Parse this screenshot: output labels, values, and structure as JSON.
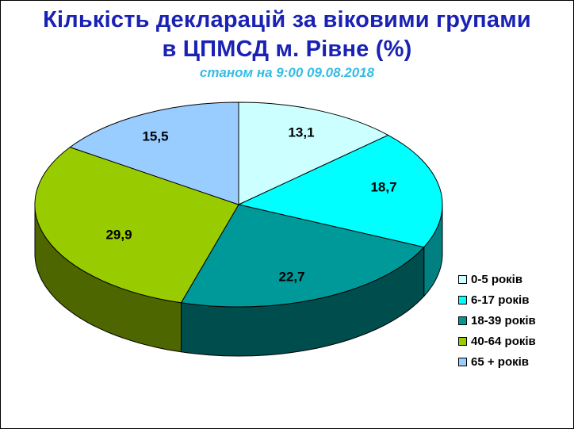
{
  "chart_data": {
    "type": "pie",
    "title": "Кількість декларацій за віковими групами",
    "title_line2": "в ЦПМСД м. Рівне (%)",
    "subtitle": "станом на 9:00 09.08.2018",
    "three_d": true,
    "legend_position": "right",
    "slices": [
      {
        "label": "0-5 років",
        "value": 13.1,
        "value_label": "13,1",
        "color": "#ccffff",
        "side_color": "#9fdede"
      },
      {
        "label": "6-17 років",
        "value": 18.7,
        "value_label": "18,7",
        "color": "#00ffff",
        "side_color": "#008080"
      },
      {
        "label": "18-39 років",
        "value": 22.7,
        "value_label": "22,7",
        "color": "#009999",
        "side_color": "#004d4d"
      },
      {
        "label": "40-64 років",
        "value": 29.9,
        "value_label": "29,9",
        "color": "#99cc00",
        "side_color": "#4d6600"
      },
      {
        "label": "65 + років",
        "value": 15.5,
        "value_label": "15,5",
        "color": "#99ccff",
        "side_color": "#4d6680"
      }
    ]
  },
  "colors": {
    "title": "#1a22b4",
    "subtitle": "#33bde6",
    "outline": "#000000"
  }
}
